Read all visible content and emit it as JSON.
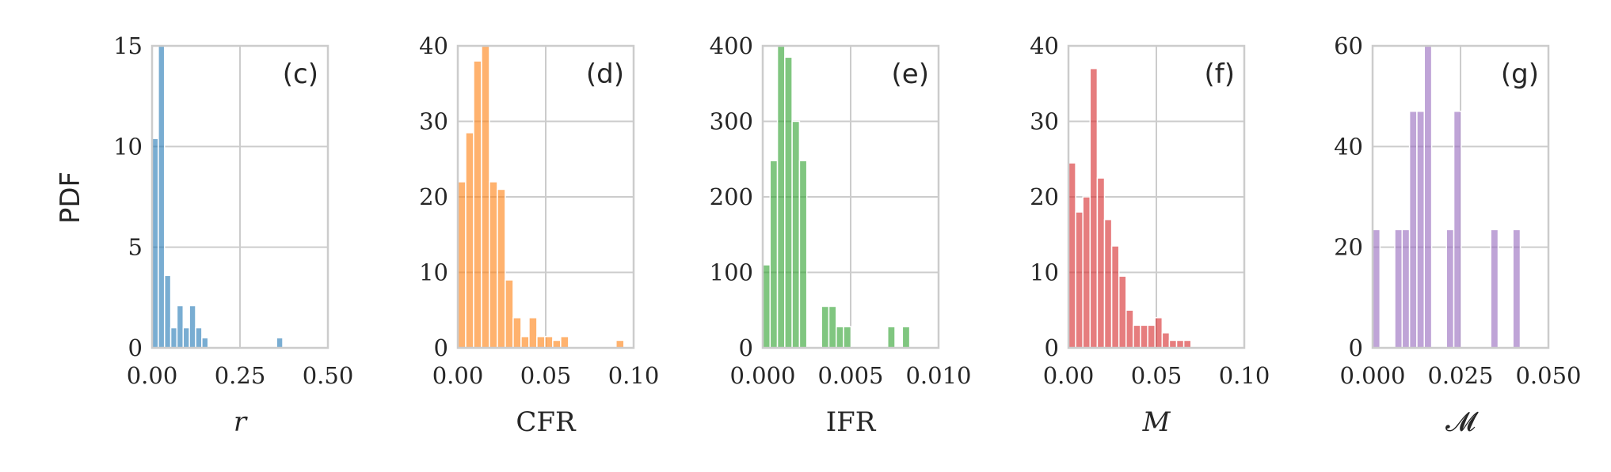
{
  "ylabel": "PDF",
  "colors": [
    "#1f77b4",
    "#ff7f0e",
    "#2ca02c",
    "#d62728",
    "#9467bd"
  ],
  "chart_data": [
    {
      "type": "bar",
      "panel_label": "(c)",
      "xlabel": "r",
      "xlim": [
        0,
        0.5
      ],
      "ylim": [
        0,
        15
      ],
      "xticks": [
        "0.00",
        "0.25",
        "0.50"
      ],
      "xtick_values": [
        0,
        0.25,
        0.5
      ],
      "yticks": [
        "0",
        "5",
        "10",
        "15"
      ],
      "ytick_values": [
        0,
        5,
        10,
        15
      ],
      "bin_edges_start": 0,
      "bin_width": 0.0177,
      "values": [
        10.4,
        15.0,
        3.6,
        1.0,
        2.1,
        1.0,
        2.1,
        1.0,
        0.5,
        0,
        0,
        0,
        0,
        0,
        0,
        0,
        0,
        0,
        0,
        0,
        0.5
      ]
    },
    {
      "type": "bar",
      "panel_label": "(d)",
      "xlabel": "CFR",
      "xlim": [
        0,
        0.1
      ],
      "ylim": [
        0,
        40
      ],
      "xticks": [
        "0.00",
        "0.05",
        "0.10"
      ],
      "xtick_values": [
        0,
        0.05,
        0.1
      ],
      "yticks": [
        "0",
        "10",
        "20",
        "30",
        "40"
      ],
      "ytick_values": [
        0,
        10,
        20,
        30,
        40
      ],
      "bin_edges_start": 0,
      "bin_width": 0.0045,
      "values": [
        22,
        28.5,
        38,
        40,
        22,
        21,
        9,
        4,
        1.5,
        4,
        1.5,
        1.5,
        1,
        1.5,
        0,
        0,
        0,
        0,
        0,
        0,
        1
      ]
    },
    {
      "type": "bar",
      "panel_label": "(e)",
      "xlabel": "IFR",
      "xlim": [
        0,
        0.01
      ],
      "ylim": [
        0,
        400
      ],
      "xticks": [
        "0.000",
        "0.005",
        "0.010"
      ],
      "xtick_values": [
        0,
        0.005,
        0.01
      ],
      "yticks": [
        "0",
        "100",
        "200",
        "300",
        "400"
      ],
      "ytick_values": [
        0,
        100,
        200,
        300,
        400
      ],
      "bin_edges_start": 0,
      "bin_width": 0.000418,
      "values": [
        110,
        248,
        400,
        385,
        300,
        248,
        0,
        0,
        55,
        55,
        28,
        28,
        0,
        0,
        0,
        0,
        0,
        28,
        0,
        28
      ]
    },
    {
      "type": "bar",
      "panel_label": "(f)",
      "xlabel": "M",
      "xlim": [
        0,
        0.1
      ],
      "ylim": [
        0,
        40
      ],
      "xticks": [
        "0.00",
        "0.05",
        "0.10"
      ],
      "xtick_values": [
        0,
        0.05,
        0.1
      ],
      "yticks": [
        "0",
        "10",
        "20",
        "30",
        "40"
      ],
      "ytick_values": [
        0,
        10,
        20,
        30,
        40
      ],
      "bin_edges_start": 0,
      "bin_width": 0.0041,
      "values": [
        24.5,
        18,
        20,
        37,
        22.5,
        17,
        13.5,
        9.5,
        5,
        3,
        3,
        3,
        4,
        2,
        1,
        1,
        1
      ]
    },
    {
      "type": "bar",
      "panel_label": "(g)",
      "xlabel": "𝓜",
      "xlim": [
        0,
        0.05
      ],
      "ylim": [
        0,
        60
      ],
      "xticks": [
        "0.000",
        "0.025",
        "0.050"
      ],
      "xtick_values": [
        0,
        0.025,
        0.05
      ],
      "yticks": [
        "0",
        "20",
        "40",
        "60"
      ],
      "ytick_values": [
        0,
        20,
        40,
        60
      ],
      "bin_edges_start": 0,
      "bin_width": 0.0021,
      "values": [
        23.5,
        0,
        0,
        23.5,
        23.5,
        47,
        47,
        60,
        0,
        0,
        23.5,
        47,
        0,
        0,
        0,
        0,
        23.5,
        0,
        0,
        23.5
      ]
    }
  ]
}
